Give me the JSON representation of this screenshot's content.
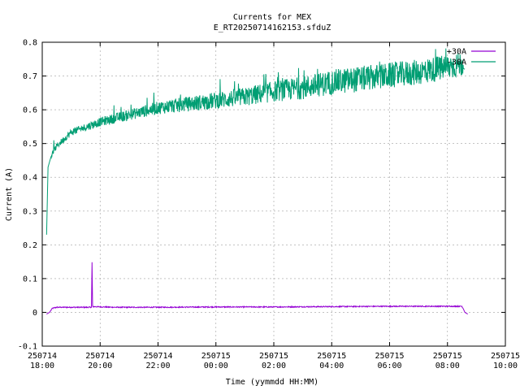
{
  "chart_data": {
    "type": "line",
    "title": "Currents for MEX",
    "subtitle": "E_RT20250714162153.sfduZ",
    "xlabel": "Time (yymmdd HH:MM)",
    "ylabel": "Current (A)",
    "xlim": [
      18,
      34
    ],
    "ylim": [
      -0.1,
      0.8
    ],
    "grid": true,
    "legend_position": "top-right",
    "x_ticks": [
      {
        "x": 18,
        "date": "250714",
        "time": "18:00"
      },
      {
        "x": 20,
        "date": "250714",
        "time": "20:00"
      },
      {
        "x": 22,
        "date": "250714",
        "time": "22:00"
      },
      {
        "x": 24,
        "date": "250715",
        "time": "00:00"
      },
      {
        "x": 26,
        "date": "250715",
        "time": "02:00"
      },
      {
        "x": 28,
        "date": "250715",
        "time": "04:00"
      },
      {
        "x": 30,
        "date": "250715",
        "time": "06:00"
      },
      {
        "x": 32,
        "date": "250715",
        "time": "08:00"
      },
      {
        "x": 34,
        "date": "250715",
        "time": "10:00"
      }
    ],
    "y_ticks": [
      -0.1,
      0,
      0.1,
      0.2,
      0.3,
      0.4,
      0.5,
      0.6,
      0.7,
      0.8
    ],
    "series": [
      {
        "name": "+30A",
        "color": "#9400d3",
        "x": [
          18.15,
          18.25,
          18.35,
          18.5,
          19.0,
          19.5,
          19.7,
          19.72,
          19.74,
          20.5,
          22.0,
          24.0,
          26.0,
          28.0,
          30.0,
          31.0,
          32.0,
          32.5,
          32.55,
          32.6,
          32.7
        ],
        "y": [
          -0.005,
          0.0,
          0.012,
          0.015,
          0.015,
          0.015,
          0.015,
          0.148,
          0.017,
          0.015,
          0.015,
          0.016,
          0.016,
          0.017,
          0.018,
          0.018,
          0.018,
          0.018,
          0.01,
          0.0,
          -0.005
        ]
      },
      {
        "name": "-30A",
        "color": "#009e73",
        "x": [
          18.15,
          18.2,
          18.3,
          18.5,
          18.75,
          19.0,
          19.5,
          20.0,
          20.5,
          21.0,
          22.0,
          23.0,
          24.0,
          25.0,
          26.0,
          27.0,
          28.0,
          29.0,
          30.0,
          31.0,
          32.0,
          32.5,
          32.6
        ],
        "y": [
          0.23,
          0.43,
          0.46,
          0.49,
          0.51,
          0.53,
          0.545,
          0.56,
          0.57,
          0.58,
          0.6,
          0.61,
          0.62,
          0.63,
          0.645,
          0.655,
          0.67,
          0.68,
          0.69,
          0.7,
          0.715,
          0.725,
          0.72
        ]
      }
    ]
  }
}
